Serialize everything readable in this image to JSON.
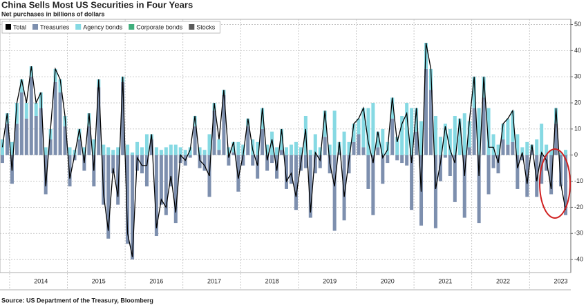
{
  "chart_data": {
    "type": "bar",
    "stacked": true,
    "title": "China Sells Most US Securities in Four Years",
    "subtitle": "Net purchases in billions of dollars",
    "source": "Source: US Department of the Treasury, Bloomberg",
    "categories": [
      null,
      null,
      null,
      null,
      null,
      null,
      null,
      null,
      "2014",
      null,
      null,
      null,
      null,
      null,
      null,
      null,
      null,
      null,
      null,
      null,
      "2015",
      null,
      null,
      null,
      null,
      null,
      null,
      null,
      null,
      null,
      null,
      null,
      "2016",
      null,
      null,
      null,
      null,
      null,
      null,
      null,
      null,
      null,
      null,
      null,
      "2017",
      null,
      null,
      null,
      null,
      null,
      null,
      null,
      null,
      null,
      null,
      null,
      "2018",
      null,
      null,
      null,
      null,
      null,
      null,
      null,
      null,
      null,
      null,
      null,
      "2019",
      null,
      null,
      null,
      null,
      null,
      null,
      null,
      null,
      null,
      null,
      null,
      "2020",
      null,
      null,
      null,
      null,
      null,
      null,
      null,
      null,
      null,
      null,
      null,
      "2021",
      null,
      null,
      null,
      null,
      null,
      null,
      null,
      null,
      null,
      null,
      null,
      "2022",
      null,
      null,
      null,
      null,
      null,
      null,
      null,
      null,
      null,
      null,
      null,
      "2023",
      null
    ],
    "series": [
      {
        "name": "Total",
        "type": "line",
        "color": "#000000",
        "values": [
          3,
          16,
          -6,
          20,
          29,
          20,
          34,
          20,
          24,
          -12,
          10,
          33,
          29,
          15,
          -9,
          0,
          10,
          -3,
          16,
          -6,
          29,
          -15,
          -29,
          -5,
          -16,
          30,
          -30,
          -39,
          -1,
          -4,
          -4,
          8,
          -28,
          -17,
          -20,
          -8,
          -22,
          0,
          -2,
          2,
          15,
          -2,
          -4,
          -8,
          20,
          6,
          25,
          -1,
          5,
          -9,
          0,
          14,
          2,
          -4,
          18,
          -2,
          6,
          -6,
          10,
          -10,
          -7,
          -16,
          -3,
          10,
          -22,
          1,
          -2,
          17,
          -3,
          -12,
          5,
          -16,
          -2,
          12,
          14,
          18,
          5,
          -3,
          9,
          -1,
          2,
          22,
          5,
          12,
          16,
          -3,
          18,
          -14,
          43,
          33,
          -13,
          -3,
          11,
          2,
          -3,
          14,
          -8,
          13,
          30,
          -8,
          30,
          3,
          3,
          -3,
          12,
          14,
          17,
          -5,
          1,
          -11,
          4,
          -10,
          1,
          -2,
          -13,
          18,
          -11,
          -21
        ]
      },
      {
        "name": "Treasuries",
        "type": "bar",
        "color": "#7d8fae",
        "values": [
          -3,
          12,
          -11,
          12,
          24,
          14,
          30,
          15,
          18,
          -15,
          6,
          28,
          24,
          11,
          -12,
          -2,
          6,
          -6,
          11,
          -12,
          26,
          -19,
          -32,
          -7,
          -19,
          28,
          -34,
          -40,
          -6,
          -7,
          -12,
          6,
          -31,
          -19,
          -23,
          -12,
          -26,
          -3,
          -4,
          -1,
          11,
          -5,
          -6,
          -16,
          17,
          2,
          23,
          -4,
          1,
          -14,
          -4,
          11,
          -4,
          -9,
          10,
          -6,
          -3,
          -9,
          2,
          -13,
          -11,
          -21,
          -6,
          -5,
          -24,
          -7,
          -5,
          7,
          -7,
          -29,
          1,
          -25,
          -7,
          5,
          8,
          3,
          -13,
          -23,
          3,
          -11,
          -3,
          14,
          -2,
          -3,
          -4,
          -21,
          9,
          -27,
          33,
          25,
          -28,
          -10,
          -1,
          -8,
          -18,
          0,
          -24,
          3,
          18,
          -26,
          22,
          -15,
          -5,
          -7,
          6,
          4,
          5,
          -13,
          -2,
          -16,
          2,
          -16,
          -11,
          -6,
          -15,
          12,
          -12,
          -23
        ]
      },
      {
        "name": "Agency bonds",
        "type": "bar",
        "color": "#86d9e3",
        "values": [
          6,
          4,
          5,
          8,
          5,
          6,
          4,
          5,
          6,
          3,
          4,
          5,
          5,
          4,
          3,
          2,
          4,
          3,
          5,
          6,
          3,
          4,
          3,
          2,
          3,
          2,
          4,
          1,
          5,
          3,
          8,
          2,
          3,
          2,
          3,
          4,
          4,
          3,
          2,
          3,
          4,
          3,
          2,
          8,
          3,
          4,
          2,
          3,
          4,
          5,
          4,
          3,
          6,
          5,
          8,
          4,
          9,
          3,
          8,
          3,
          4,
          5,
          3,
          15,
          2,
          8,
          3,
          10,
          4,
          17,
          4,
          9,
          5,
          7,
          6,
          15,
          18,
          20,
          6,
          10,
          5,
          8,
          7,
          15,
          20,
          18,
          9,
          13,
          10,
          8,
          15,
          7,
          12,
          10,
          15,
          14,
          16,
          10,
          12,
          18,
          8,
          18,
          8,
          4,
          6,
          10,
          12,
          8,
          3,
          5,
          2,
          6,
          12,
          4,
          2,
          6,
          1,
          2
        ]
      },
      {
        "name": "Corporate bonds",
        "type": "bar",
        "color": "#3fae7c",
        "values": [
          0,
          0,
          0,
          0,
          0,
          0,
          0,
          0,
          0,
          0,
          0,
          0,
          0,
          0,
          0,
          0,
          0,
          0,
          0,
          0,
          0,
          0,
          0,
          0,
          0,
          0,
          0,
          0,
          0,
          0,
          0,
          0,
          0,
          0,
          0,
          0,
          0,
          0,
          0,
          0,
          0,
          0,
          0,
          0,
          0,
          0,
          0,
          0,
          0,
          0,
          0,
          0,
          0,
          0,
          0,
          0,
          0,
          0,
          0,
          0,
          0,
          0,
          0,
          0,
          0,
          0,
          0,
          0,
          0,
          0,
          0,
          0,
          0,
          0,
          0,
          0,
          0,
          0,
          0,
          0,
          0,
          0,
          0,
          0,
          0,
          0,
          0,
          0,
          0,
          0,
          0,
          0,
          0,
          0,
          0,
          0,
          0,
          0,
          0,
          0,
          0,
          0,
          0,
          0,
          0,
          0,
          0,
          0,
          0,
          0,
          0,
          0,
          0,
          0,
          0,
          0,
          0,
          0
        ]
      },
      {
        "name": "Stocks",
        "type": "bar",
        "color": "#5a5a5a",
        "values": [
          0,
          0,
          0,
          0,
          0,
          0,
          0,
          0,
          0,
          0,
          0,
          0,
          0,
          0,
          0,
          0,
          0,
          0,
          0,
          0,
          0,
          0,
          0,
          0,
          0,
          0,
          0,
          0,
          0,
          0,
          0,
          0,
          0,
          0,
          0,
          0,
          0,
          0,
          0,
          0,
          0,
          0,
          0,
          0,
          0,
          0,
          0,
          0,
          0,
          0,
          0,
          0,
          0,
          0,
          0,
          0,
          0,
          0,
          0,
          0,
          0,
          0,
          0,
          0,
          0,
          0,
          0,
          0,
          0,
          0,
          0,
          0,
          0,
          0,
          0,
          0,
          0,
          0,
          0,
          0,
          0,
          0,
          0,
          0,
          0,
          0,
          0,
          0,
          0,
          0,
          0,
          0,
          0,
          0,
          0,
          0,
          0,
          0,
          0,
          0,
          0,
          0,
          0,
          0,
          0,
          0,
          0,
          0,
          0,
          0,
          0,
          0,
          0,
          0,
          0,
          0,
          0,
          0
        ]
      }
    ],
    "ylim": [
      -45,
      52
    ],
    "yticks": [
      50,
      40,
      30,
      20,
      10,
      0,
      -10,
      -20,
      -30,
      -40
    ],
    "grid": true,
    "legend": "top-left"
  }
}
